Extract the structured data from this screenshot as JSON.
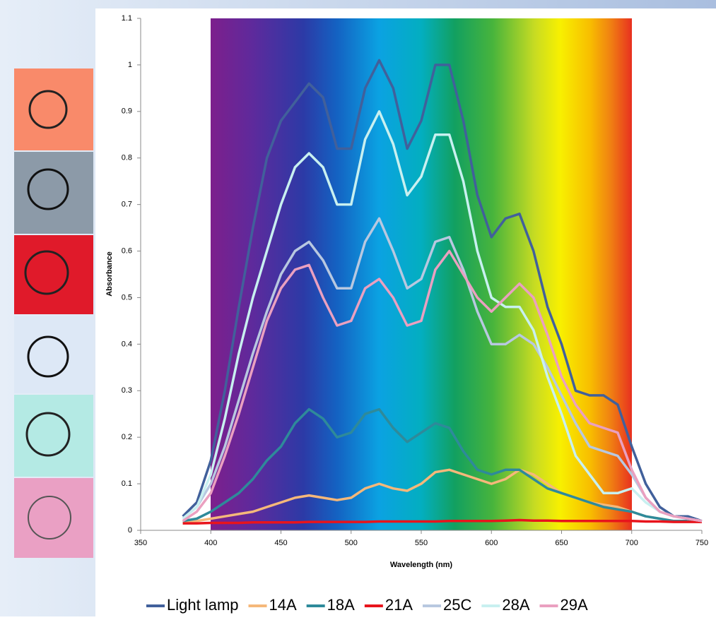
{
  "chart_data": {
    "type": "line",
    "x_label": "Wavelength (nm)",
    "y_label": "Absorbance",
    "x": [
      380,
      390,
      400,
      410,
      420,
      430,
      440,
      450,
      460,
      470,
      480,
      490,
      500,
      510,
      520,
      530,
      540,
      550,
      560,
      570,
      580,
      590,
      600,
      610,
      620,
      630,
      640,
      650,
      660,
      670,
      680,
      690,
      700,
      710,
      720,
      730,
      740,
      750
    ],
    "xlim": [
      350,
      750
    ],
    "xticks": [
      350,
      400,
      450,
      500,
      550,
      600,
      650,
      700,
      750
    ],
    "ylim": [
      0,
      1.1
    ],
    "yticks": [
      0,
      0.1,
      0.2,
      0.3,
      0.4,
      0.5,
      0.6,
      0.7,
      0.8,
      0.9,
      1,
      1.1
    ],
    "series": [
      {
        "name": "Light lamp",
        "color": "#41609b",
        "values": [
          0.03,
          0.06,
          0.15,
          0.3,
          0.48,
          0.65,
          0.8,
          0.88,
          0.92,
          0.96,
          0.93,
          0.82,
          0.82,
          0.95,
          1.01,
          0.95,
          0.82,
          0.88,
          1.0,
          1.0,
          0.88,
          0.72,
          0.63,
          0.67,
          0.68,
          0.6,
          0.48,
          0.4,
          0.3,
          0.29,
          0.29,
          0.27,
          0.18,
          0.1,
          0.05,
          0.03,
          0.03,
          0.02
        ]
      },
      {
        "name": "14A",
        "color": "#f5b87a",
        "values": [
          0.015,
          0.02,
          0.025,
          0.03,
          0.035,
          0.04,
          0.05,
          0.06,
          0.07,
          0.075,
          0.07,
          0.065,
          0.07,
          0.09,
          0.1,
          0.09,
          0.085,
          0.1,
          0.125,
          0.13,
          0.12,
          0.11,
          0.1,
          0.11,
          0.13,
          0.12,
          0.1,
          0.08,
          0.07,
          0.06,
          0.055,
          0.05,
          0.04,
          0.03,
          0.025,
          0.02,
          0.02,
          0.02
        ]
      },
      {
        "name": "18A",
        "color": "#2e8a9a",
        "values": [
          0.02,
          0.025,
          0.04,
          0.06,
          0.08,
          0.11,
          0.15,
          0.18,
          0.23,
          0.26,
          0.24,
          0.2,
          0.21,
          0.25,
          0.26,
          0.22,
          0.19,
          0.21,
          0.23,
          0.22,
          0.17,
          0.13,
          0.12,
          0.13,
          0.13,
          0.11,
          0.09,
          0.08,
          0.07,
          0.06,
          0.05,
          0.045,
          0.04,
          0.03,
          0.025,
          0.02,
          0.02,
          0.02
        ]
      },
      {
        "name": "21A",
        "color": "#e8141c",
        "values": [
          0.015,
          0.015,
          0.016,
          0.016,
          0.016,
          0.017,
          0.017,
          0.017,
          0.017,
          0.018,
          0.018,
          0.018,
          0.018,
          0.018,
          0.019,
          0.019,
          0.019,
          0.019,
          0.019,
          0.02,
          0.02,
          0.02,
          0.02,
          0.021,
          0.022,
          0.021,
          0.021,
          0.02,
          0.02,
          0.02,
          0.02,
          0.02,
          0.02,
          0.019,
          0.019,
          0.018,
          0.018,
          0.018
        ]
      },
      {
        "name": "25C",
        "color": "#b8c8e0",
        "values": [
          0.025,
          0.05,
          0.1,
          0.18,
          0.28,
          0.38,
          0.47,
          0.55,
          0.6,
          0.62,
          0.58,
          0.52,
          0.52,
          0.62,
          0.67,
          0.6,
          0.52,
          0.54,
          0.62,
          0.63,
          0.56,
          0.47,
          0.4,
          0.4,
          0.42,
          0.4,
          0.35,
          0.29,
          0.23,
          0.18,
          0.17,
          0.16,
          0.12,
          0.07,
          0.04,
          0.03,
          0.025,
          0.02
        ]
      },
      {
        "name": "28A",
        "color": "#c8f0f0",
        "values": [
          0.025,
          0.05,
          0.12,
          0.24,
          0.38,
          0.5,
          0.6,
          0.7,
          0.78,
          0.81,
          0.78,
          0.7,
          0.7,
          0.84,
          0.9,
          0.83,
          0.72,
          0.76,
          0.85,
          0.85,
          0.75,
          0.6,
          0.5,
          0.48,
          0.48,
          0.43,
          0.33,
          0.25,
          0.16,
          0.12,
          0.08,
          0.08,
          0.09,
          0.06,
          0.04,
          0.03,
          0.025,
          0.02
        ]
      },
      {
        "name": "29A",
        "color": "#eaa0c0",
        "values": [
          0.02,
          0.04,
          0.08,
          0.16,
          0.25,
          0.35,
          0.45,
          0.52,
          0.56,
          0.57,
          0.5,
          0.44,
          0.45,
          0.52,
          0.54,
          0.5,
          0.44,
          0.45,
          0.56,
          0.6,
          0.55,
          0.5,
          0.47,
          0.5,
          0.53,
          0.5,
          0.42,
          0.33,
          0.27,
          0.23,
          0.22,
          0.21,
          0.13,
          0.07,
          0.04,
          0.03,
          0.025,
          0.02
        ]
      }
    ]
  }
}
